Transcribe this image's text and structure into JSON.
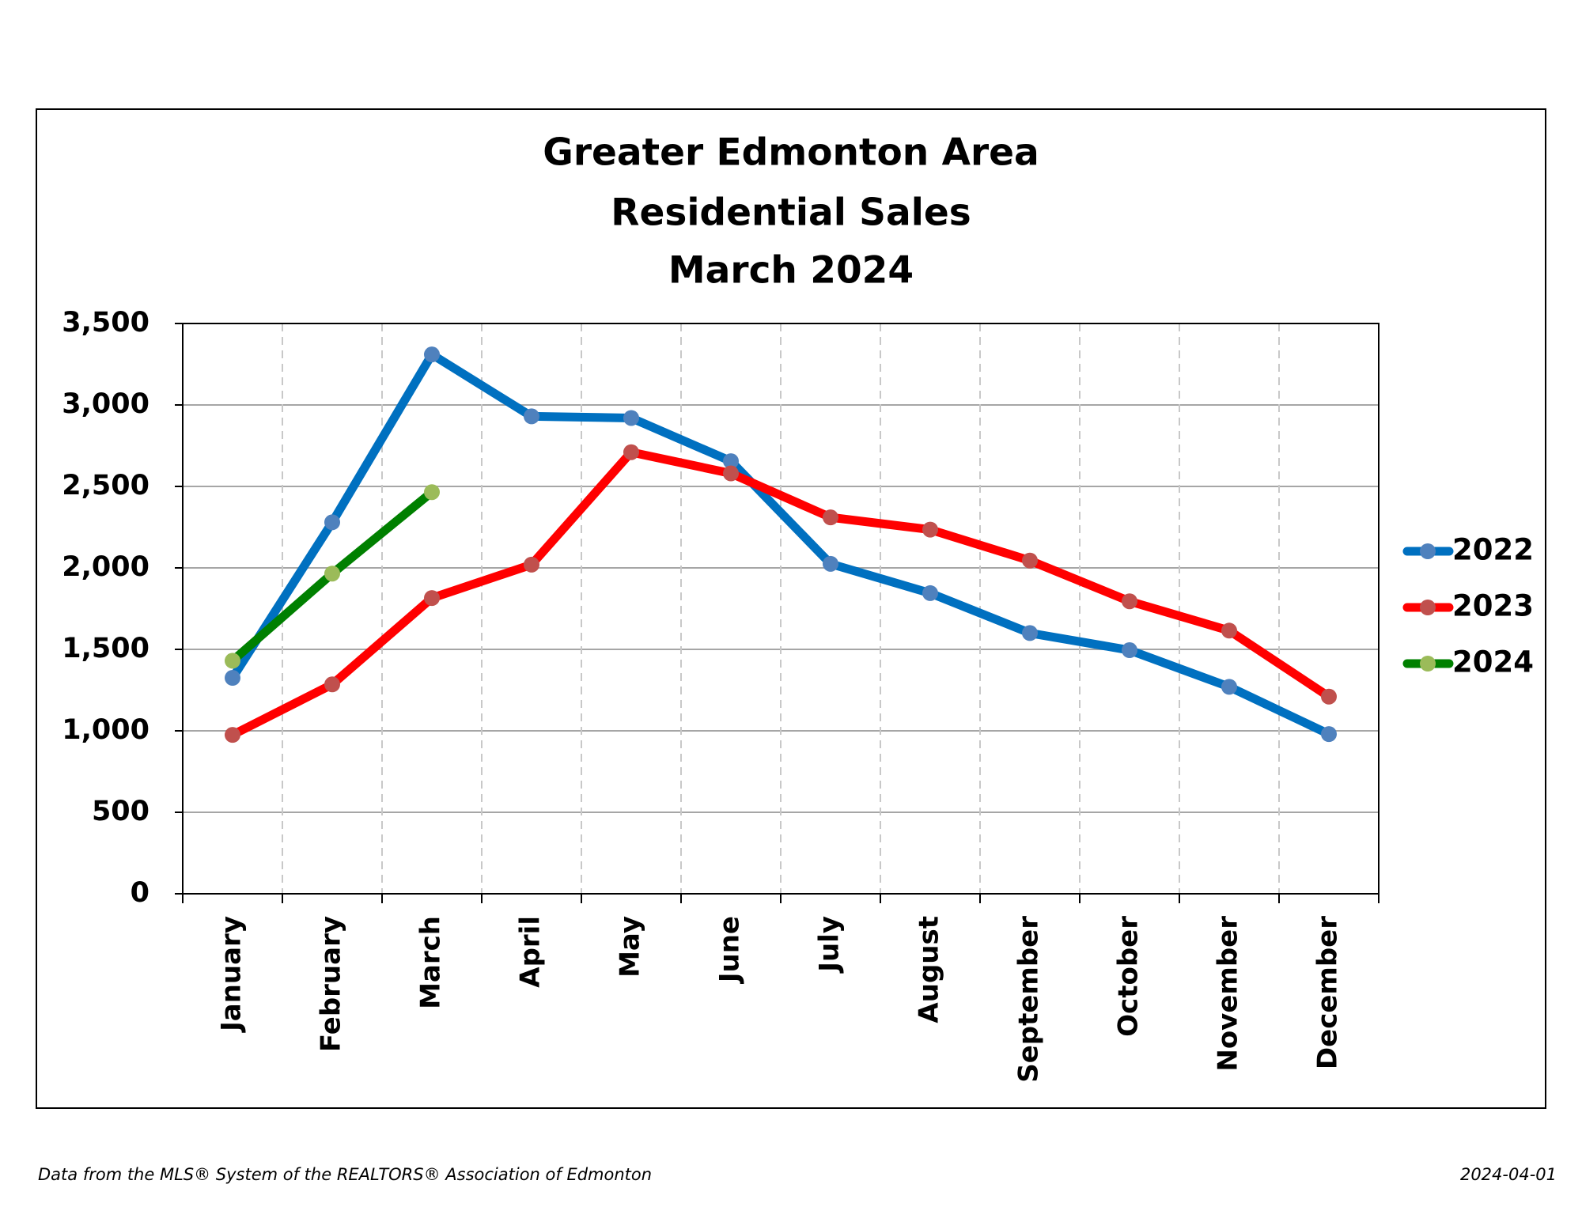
{
  "chart_data": {
    "type": "line",
    "title": [
      "Greater Edmonton Area",
      "Residential Sales",
      "March 2024"
    ],
    "categories": [
      "January",
      "February",
      "March",
      "April",
      "May",
      "June",
      "July",
      "August",
      "September",
      "October",
      "November",
      "December"
    ],
    "series": [
      {
        "name": "2022",
        "color": "#0070c0",
        "marker_color": "#4f81bd",
        "values": [
          1325,
          2280,
          3310,
          2930,
          2920,
          2655,
          2025,
          1845,
          1600,
          1495,
          1270,
          980
        ]
      },
      {
        "name": "2023",
        "color": "#ff0000",
        "marker_color": "#c0504d",
        "values": [
          975,
          1285,
          1815,
          2020,
          2710,
          2580,
          2310,
          2235,
          2045,
          1795,
          1615,
          1210
        ]
      },
      {
        "name": "2024",
        "color": "#008000",
        "marker_color": "#9bbb59",
        "values": [
          1430,
          1965,
          2465,
          null,
          null,
          null,
          null,
          null,
          null,
          null,
          null,
          null
        ]
      }
    ],
    "ylim": [
      0,
      3500
    ],
    "yticks": [
      0,
      500,
      {
        "value": 1000,
        "label": "1,000"
      },
      {
        "value": 1500,
        "label": "1,500"
      },
      {
        "value": 2000,
        "label": "2,000"
      },
      {
        "value": 2500,
        "label": "2,500"
      },
      {
        "value": 3000,
        "label": "3,000"
      },
      {
        "value": 3500,
        "label": "3,500"
      }
    ],
    "grid": true,
    "legend": "right",
    "source": "Data from the MLS® System of the REALTORS® Association of Edmonton",
    "date": "2024-04-01"
  }
}
